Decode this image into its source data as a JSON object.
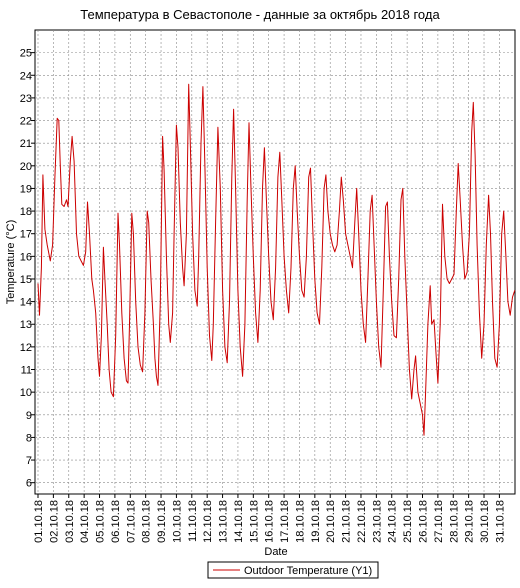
{
  "chart_data": {
    "type": "line",
    "title": "Температура в Севастополе - данные за октябрь 2018 года",
    "xlabel": "Date",
    "ylabel": "Temperature (°C)",
    "ylim": [
      5.5,
      26
    ],
    "yticks": [
      6,
      7,
      8,
      9,
      10,
      11,
      12,
      13,
      14,
      15,
      16,
      17,
      18,
      19,
      20,
      21,
      22,
      23,
      24,
      25
    ],
    "grid": true,
    "legend_position": "bottom-center",
    "line_color": "#cc0000",
    "x_tick_labels": [
      "01.10.18",
      "02.10.18",
      "03.10.18",
      "04.10.18",
      "05.10.18",
      "06.10.18",
      "07.10.18",
      "08.10.18",
      "09.10.18",
      "10.10.18",
      "11.10.18",
      "12.10.18",
      "13.10.18",
      "14.10.18",
      "15.10.18",
      "16.10.18",
      "17.10.18",
      "18.10.18",
      "19.10.18",
      "20.10.18",
      "21.10.18",
      "22.10.18",
      "23.10.18",
      "24.10.18",
      "25.10.18",
      "26.10.18",
      "27.10.18",
      "28.10.18",
      "29.10.18",
      "30.10.18",
      "31.10.18"
    ],
    "series": [
      {
        "name": "Outdoor Temperature (Y1)",
        "x_unit": "days since 01.10.18 00:00",
        "points": [
          [
            0,
            14.8
          ],
          [
            0.1,
            13.4
          ],
          [
            0.22,
            15.5
          ],
          [
            0.32,
            19.6
          ],
          [
            0.45,
            17.2
          ],
          [
            0.6,
            16.5
          ],
          [
            0.8,
            15.8
          ],
          [
            0.95,
            16.5
          ],
          [
            1.1,
            19.5
          ],
          [
            1.25,
            22.1
          ],
          [
            1.35,
            22.0
          ],
          [
            1.45,
            20.0
          ],
          [
            1.55,
            18.3
          ],
          [
            1.7,
            18.2
          ],
          [
            1.85,
            18.5
          ],
          [
            1.95,
            18.2
          ],
          [
            2.1,
            20.2
          ],
          [
            2.22,
            21.3
          ],
          [
            2.35,
            20.2
          ],
          [
            2.5,
            17.0
          ],
          [
            2.65,
            16.0
          ],
          [
            2.8,
            15.8
          ],
          [
            2.95,
            15.6
          ],
          [
            3.1,
            16.2
          ],
          [
            3.22,
            18.4
          ],
          [
            3.35,
            17.0
          ],
          [
            3.5,
            15.0
          ],
          [
            3.6,
            14.5
          ],
          [
            3.75,
            13.5
          ],
          [
            3.9,
            11.5
          ],
          [
            4.0,
            10.7
          ],
          [
            4.12,
            12.5
          ],
          [
            4.25,
            16.4
          ],
          [
            4.35,
            15.0
          ],
          [
            4.5,
            13.0
          ],
          [
            4.62,
            11.0
          ],
          [
            4.75,
            10.0
          ],
          [
            4.9,
            9.8
          ],
          [
            5.05,
            12.5
          ],
          [
            5.2,
            17.9
          ],
          [
            5.3,
            16.5
          ],
          [
            5.45,
            13.5
          ],
          [
            5.6,
            11.5
          ],
          [
            5.75,
            10.5
          ],
          [
            5.85,
            10.4
          ],
          [
            5.95,
            13.0
          ],
          [
            6.1,
            17.9
          ],
          [
            6.2,
            17.0
          ],
          [
            6.35,
            14.0
          ],
          [
            6.5,
            12.0
          ],
          [
            6.65,
            11.2
          ],
          [
            6.8,
            10.9
          ],
          [
            6.95,
            13.5
          ],
          [
            7.1,
            18.0
          ],
          [
            7.2,
            17.5
          ],
          [
            7.35,
            15.0
          ],
          [
            7.5,
            13.0
          ],
          [
            7.6,
            11.5
          ],
          [
            7.7,
            10.7
          ],
          [
            7.8,
            10.3
          ],
          [
            7.95,
            14.0
          ],
          [
            8.1,
            21.3
          ],
          [
            8.2,
            19.8
          ],
          [
            8.35,
            16.0
          ],
          [
            8.5,
            13.0
          ],
          [
            8.6,
            12.2
          ],
          [
            8.75,
            13.5
          ],
          [
            8.85,
            17.0
          ],
          [
            9.0,
            21.8
          ],
          [
            9.1,
            20.8
          ],
          [
            9.25,
            17.5
          ],
          [
            9.4,
            15.5
          ],
          [
            9.5,
            14.7
          ],
          [
            9.65,
            17.0
          ],
          [
            9.8,
            23.6
          ],
          [
            9.9,
            21.0
          ],
          [
            10.05,
            17.0
          ],
          [
            10.2,
            14.5
          ],
          [
            10.35,
            13.8
          ],
          [
            10.45,
            16.0
          ],
          [
            10.6,
            21.0
          ],
          [
            10.72,
            23.5
          ],
          [
            10.85,
            20.0
          ],
          [
            11.0,
            15.5
          ],
          [
            11.15,
            12.5
          ],
          [
            11.3,
            11.4
          ],
          [
            11.4,
            13.0
          ],
          [
            11.55,
            17.5
          ],
          [
            11.7,
            21.7
          ],
          [
            11.85,
            19.0
          ],
          [
            12.0,
            14.5
          ],
          [
            12.15,
            12.0
          ],
          [
            12.3,
            11.3
          ],
          [
            12.45,
            14.0
          ],
          [
            12.6,
            19.5
          ],
          [
            12.72,
            22.5
          ],
          [
            12.85,
            19.0
          ],
          [
            13.0,
            14.5
          ],
          [
            13.15,
            12.0
          ],
          [
            13.3,
            10.7
          ],
          [
            13.45,
            13.0
          ],
          [
            13.6,
            18.5
          ],
          [
            13.72,
            21.9
          ],
          [
            13.85,
            19.0
          ],
          [
            14.0,
            16.0
          ],
          [
            14.15,
            13.5
          ],
          [
            14.3,
            12.2
          ],
          [
            14.45,
            14.5
          ],
          [
            14.6,
            19.0
          ],
          [
            14.72,
            20.8
          ],
          [
            14.85,
            18.5
          ],
          [
            15.0,
            16.0
          ],
          [
            15.15,
            14.0
          ],
          [
            15.3,
            13.2
          ],
          [
            15.45,
            15.5
          ],
          [
            15.6,
            19.5
          ],
          [
            15.72,
            20.6
          ],
          [
            15.85,
            18.5
          ],
          [
            16.0,
            16.0
          ],
          [
            16.15,
            14.5
          ],
          [
            16.3,
            13.5
          ],
          [
            16.45,
            15.5
          ],
          [
            16.6,
            19.0
          ],
          [
            16.72,
            20.0
          ],
          [
            16.85,
            18.0
          ],
          [
            17.0,
            16.0
          ],
          [
            17.15,
            14.5
          ],
          [
            17.3,
            14.2
          ],
          [
            17.45,
            16.0
          ],
          [
            17.6,
            19.5
          ],
          [
            17.72,
            19.9
          ],
          [
            17.85,
            17.5
          ],
          [
            18.0,
            15.0
          ],
          [
            18.15,
            13.5
          ],
          [
            18.3,
            13.0
          ],
          [
            18.45,
            15.5
          ],
          [
            18.6,
            19.0
          ],
          [
            18.72,
            19.6
          ],
          [
            18.85,
            18.0
          ],
          [
            19.0,
            17.0
          ],
          [
            19.15,
            16.5
          ],
          [
            19.3,
            16.2
          ],
          [
            19.45,
            16.5
          ],
          [
            19.6,
            18.0
          ],
          [
            19.72,
            19.5
          ],
          [
            19.85,
            18.5
          ],
          [
            20.0,
            17.0
          ],
          [
            20.15,
            16.5
          ],
          [
            20.3,
            16.0
          ],
          [
            20.45,
            15.5
          ],
          [
            20.6,
            17.5
          ],
          [
            20.72,
            19.0
          ],
          [
            20.85,
            17.0
          ],
          [
            21.0,
            14.5
          ],
          [
            21.15,
            13.0
          ],
          [
            21.3,
            12.2
          ],
          [
            21.45,
            15.0
          ],
          [
            21.6,
            18.0
          ],
          [
            21.72,
            18.7
          ],
          [
            21.85,
            16.5
          ],
          [
            22.0,
            14.0
          ],
          [
            22.15,
            12.0
          ],
          [
            22.3,
            11.1
          ],
          [
            22.45,
            14.5
          ],
          [
            22.6,
            18.2
          ],
          [
            22.72,
            18.4
          ],
          [
            22.85,
            16.0
          ],
          [
            23.0,
            14.0
          ],
          [
            23.15,
            12.5
          ],
          [
            23.3,
            12.4
          ],
          [
            23.45,
            15.0
          ],
          [
            23.6,
            18.5
          ],
          [
            23.72,
            19.0
          ],
          [
            23.85,
            16.0
          ],
          [
            24.0,
            13.5
          ],
          [
            24.15,
            11.0
          ],
          [
            24.3,
            9.7
          ],
          [
            24.45,
            11.0
          ],
          [
            24.55,
            11.6
          ],
          [
            24.7,
            10.0
          ],
          [
            24.85,
            9.5
          ],
          [
            25.0,
            9.0
          ],
          [
            25.1,
            8.1
          ],
          [
            25.2,
            10.0
          ],
          [
            25.35,
            13.0
          ],
          [
            25.5,
            14.7
          ],
          [
            25.6,
            13.0
          ],
          [
            25.75,
            13.2
          ],
          [
            25.9,
            11.5
          ],
          [
            26.0,
            10.4
          ],
          [
            26.15,
            13.0
          ],
          [
            26.3,
            18.3
          ],
          [
            26.45,
            16.0
          ],
          [
            26.6,
            15.0
          ],
          [
            26.75,
            14.8
          ],
          [
            26.9,
            15.0
          ],
          [
            27.05,
            15.2
          ],
          [
            27.2,
            18.0
          ],
          [
            27.32,
            20.1
          ],
          [
            27.45,
            18.5
          ],
          [
            27.6,
            16.5
          ],
          [
            27.75,
            15.0
          ],
          [
            27.9,
            15.3
          ],
          [
            28.05,
            17.0
          ],
          [
            28.2,
            21.5
          ],
          [
            28.3,
            22.8
          ],
          [
            28.42,
            20.5
          ],
          [
            28.55,
            16.5
          ],
          [
            28.7,
            13.5
          ],
          [
            28.85,
            11.5
          ],
          [
            29.0,
            13.0
          ],
          [
            29.15,
            16.5
          ],
          [
            29.3,
            18.7
          ],
          [
            29.42,
            17.0
          ],
          [
            29.55,
            14.0
          ],
          [
            29.7,
            11.5
          ],
          [
            29.85,
            11.1
          ],
          [
            30.0,
            13.0
          ],
          [
            30.15,
            17.0
          ],
          [
            30.28,
            18.0
          ],
          [
            30.42,
            16.0
          ],
          [
            30.55,
            14.0
          ],
          [
            30.7,
            13.4
          ],
          [
            30.85,
            14.2
          ],
          [
            31.0,
            14.5
          ]
        ]
      }
    ]
  }
}
